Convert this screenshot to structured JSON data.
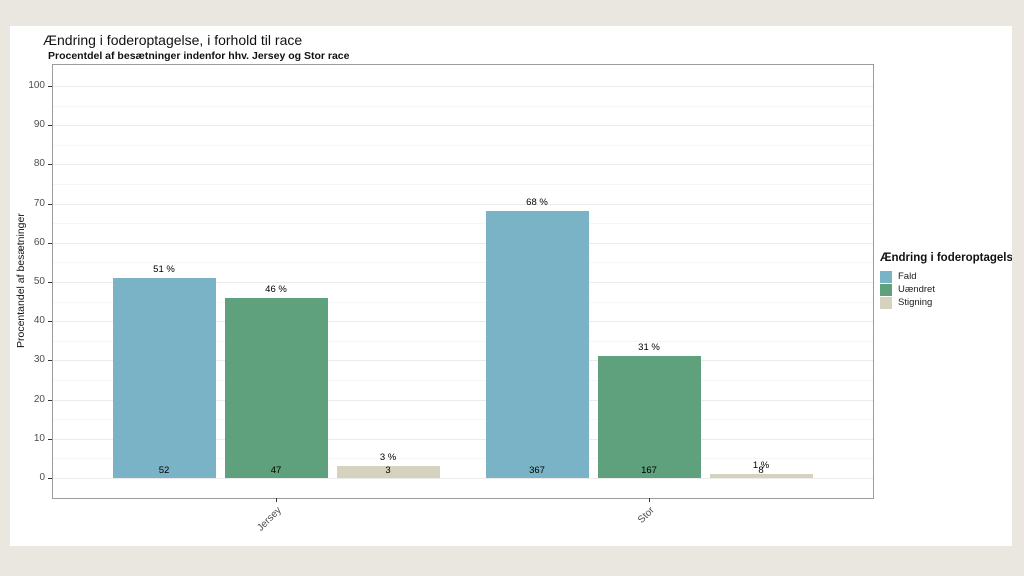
{
  "colors": {
    "page_background": "#e9e7e0",
    "figure_background": "#ffffff",
    "panel_border": "#9c9c9c",
    "grid_major": "#ebebeb",
    "grid_minor": "#f6f6f6",
    "axis_text": "#4d4d4d",
    "fald_blue": "#7ab3c5",
    "uaendret_green": "#5fa17c",
    "stigning_beige": "#d5d3bd"
  },
  "chart_data": {
    "type": "bar",
    "title": "Ændring i foderoptagelse, i forhold til race",
    "subtitle": "Procentdel af besætninger indenfor hhv. Jersey og Stor race",
    "ylabel": "Procentandel af besætninger",
    "xlabel": "",
    "ylim": [
      0,
      100
    ],
    "yticks": [
      0,
      10,
      20,
      30,
      40,
      50,
      60,
      70,
      80,
      90,
      100
    ],
    "grid": "horizontal major every 10, minor every 5",
    "legend_position": "right",
    "legend_title": "Ændring i foderoptagelse",
    "categories": [
      "Jersey",
      "Stor"
    ],
    "value_suffix": " %",
    "series": [
      {
        "name": "Fald",
        "color": "#7ab3c5",
        "values": [
          51,
          68
        ],
        "counts": [
          52,
          367
        ]
      },
      {
        "name": "Uændret",
        "color": "#5fa17c",
        "values": [
          46,
          31
        ],
        "counts": [
          47,
          167
        ]
      },
      {
        "name": "Stigning",
        "color": "#d5d3bd",
        "values": [
          3,
          1
        ],
        "counts": [
          3,
          8
        ]
      }
    ]
  }
}
